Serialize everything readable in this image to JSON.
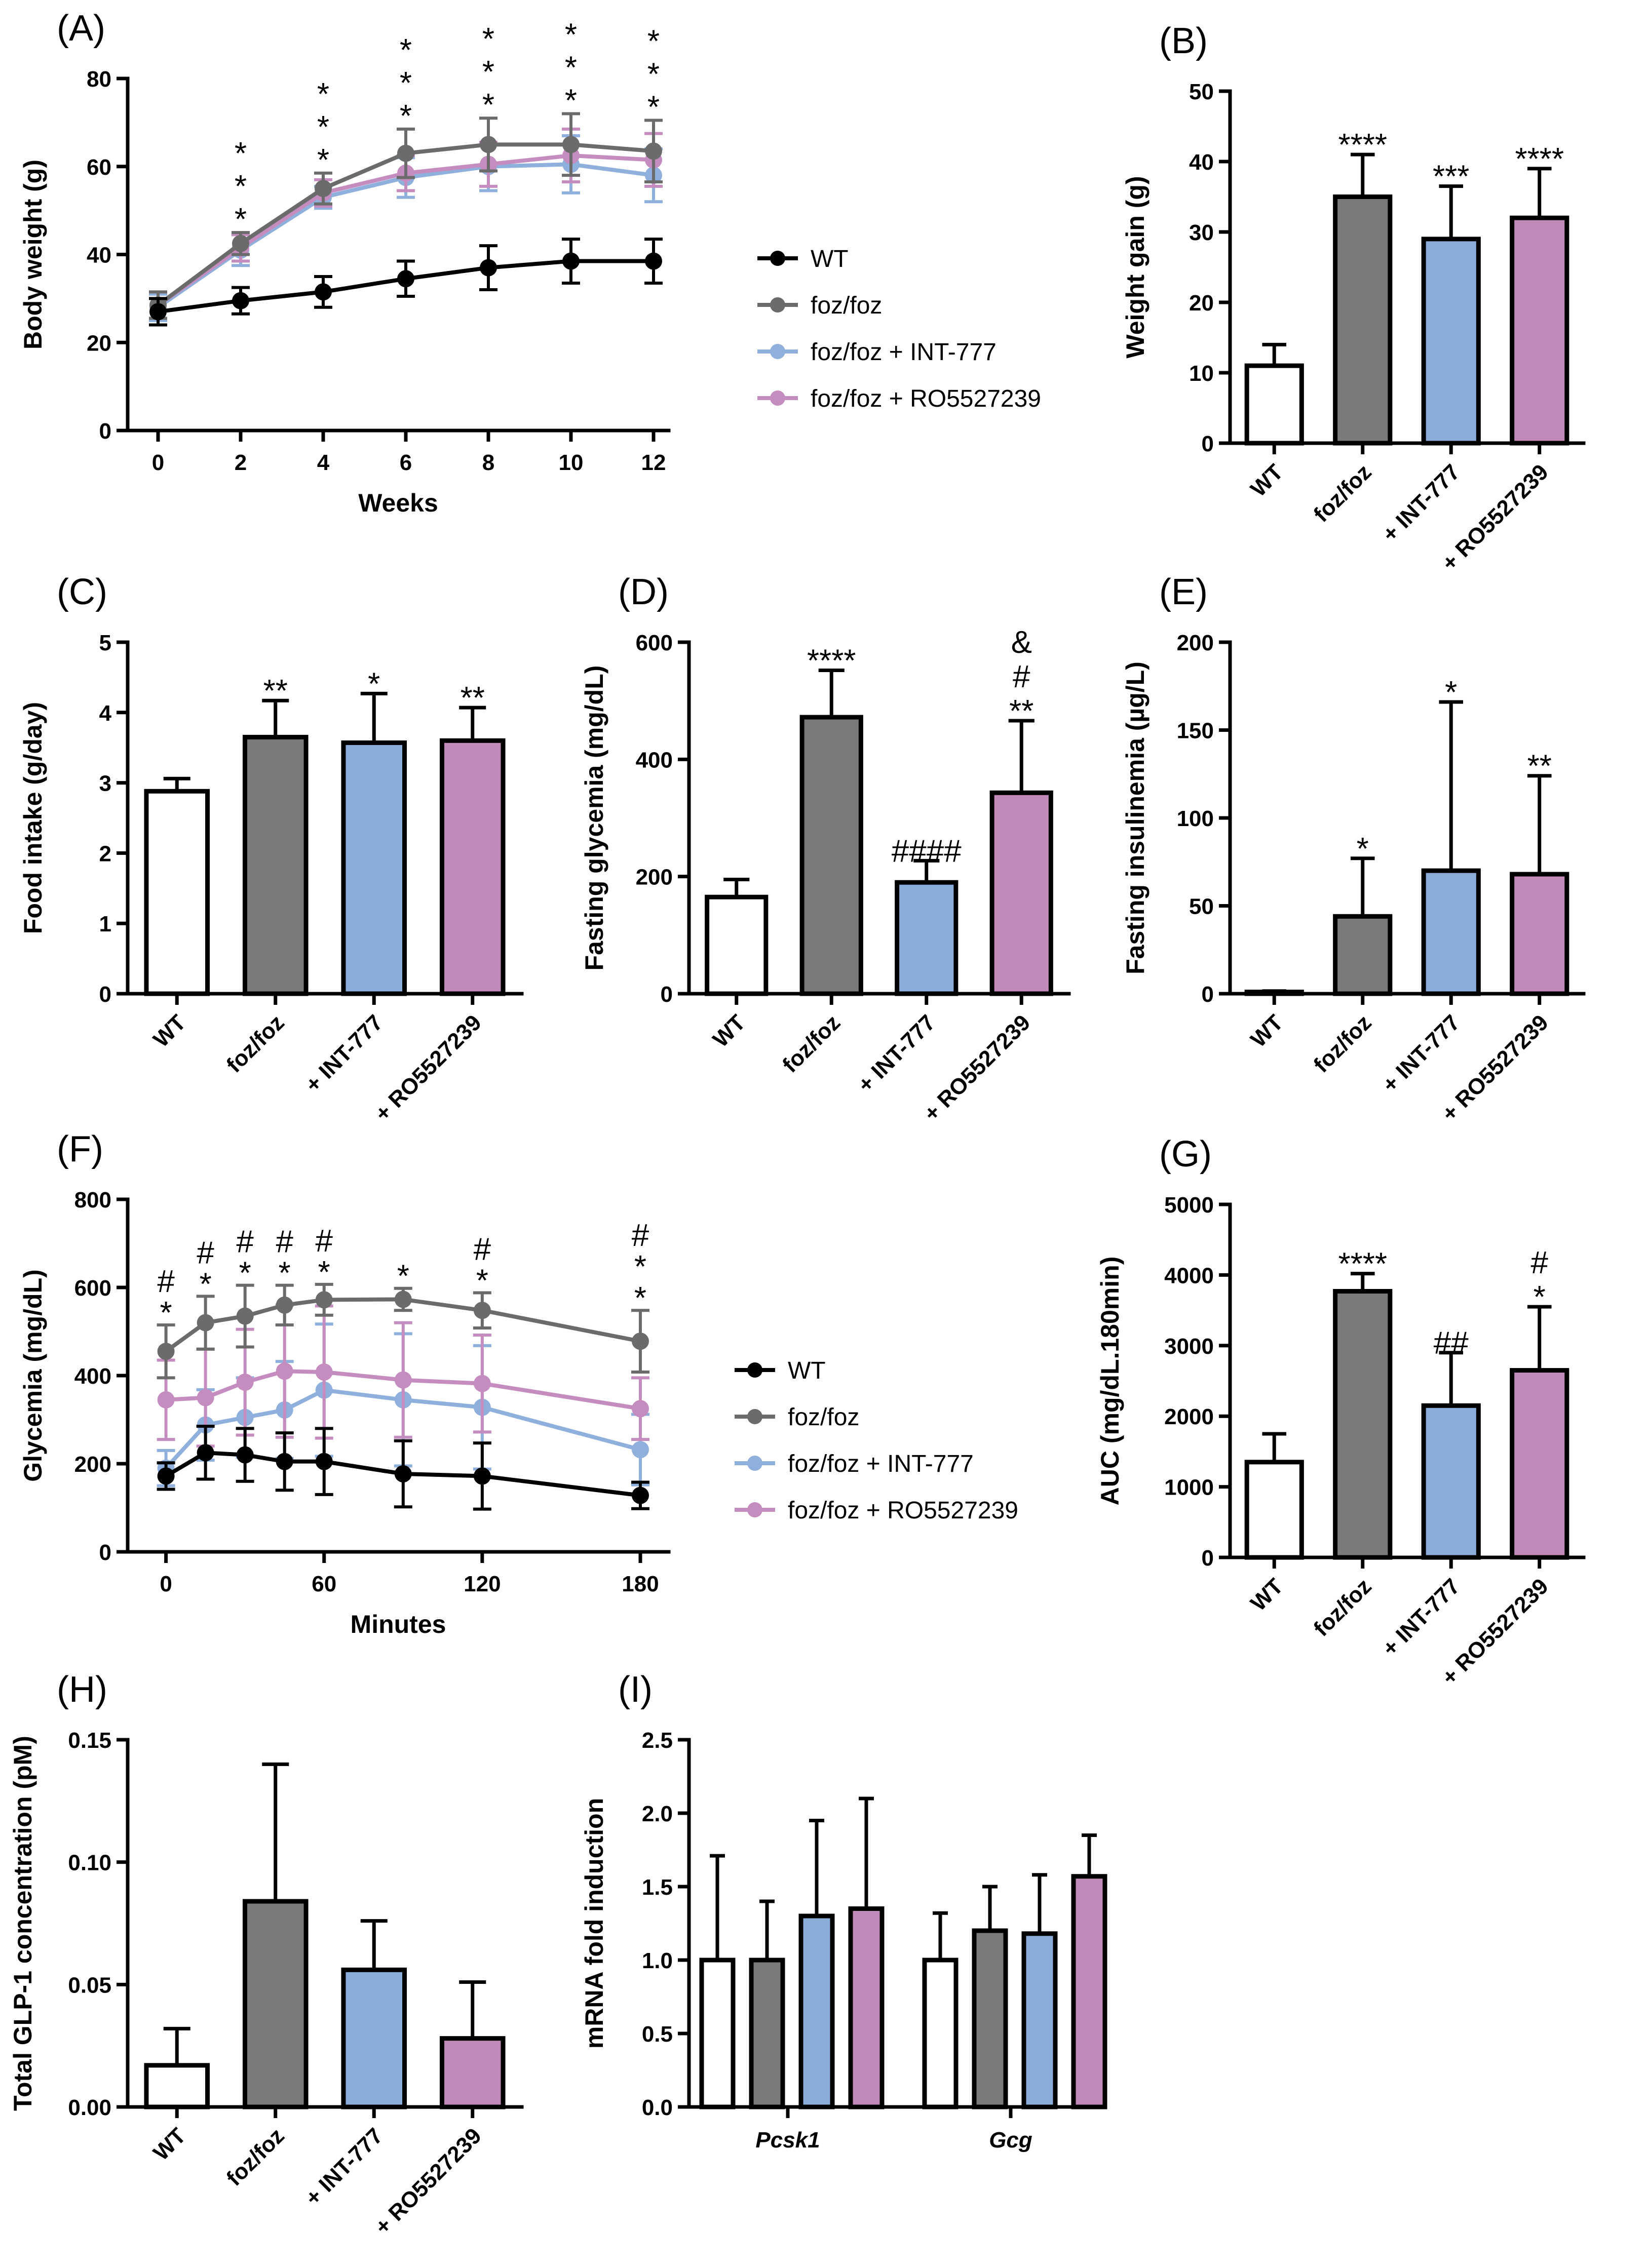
{
  "colors": {
    "wt": "#ffffff",
    "foz": "#7a7a7a",
    "foz_light": "#a2a2a6",
    "int": "#8aaed9",
    "ro": "#c18ab8",
    "line_wt": "#000000",
    "line_foz": "#6b6b6b",
    "line_int": "#8fb0dc",
    "line_ro": "#c58cc0"
  },
  "legend": [
    "WT",
    "foz/foz",
    "foz/foz + INT-777",
    "foz/foz + RO5527239"
  ],
  "chart_data": [
    {
      "id": "A",
      "type": "line",
      "panel_label": "(A)",
      "xlabel": "Weeks",
      "ylabel": "Body weight (g)",
      "ylim": [
        0,
        80
      ],
      "yticks": [
        "0",
        "20",
        "40",
        "60",
        "80"
      ],
      "x": [
        0,
        2,
        4,
        6,
        8,
        10,
        12
      ],
      "xticks": [
        "0",
        "2",
        "4",
        "6",
        "8",
        "10",
        "12"
      ],
      "series": [
        {
          "name": "WT",
          "values": [
            27,
            29.5,
            31.5,
            34.5,
            37,
            38.5,
            38.5
          ],
          "err": [
            3,
            3,
            3.5,
            4,
            5,
            5,
            5
          ]
        },
        {
          "name": "foz/foz",
          "values": [
            28.5,
            42.5,
            55,
            63,
            65,
            65,
            63.5
          ],
          "err": [
            3,
            2.5,
            3.5,
            5.5,
            6,
            7,
            7
          ]
        },
        {
          "name": "foz/foz + INT-777",
          "values": [
            28,
            41,
            53,
            57.5,
            60,
            60.5,
            58
          ],
          "err": [
            3,
            3.5,
            2.5,
            4.5,
            5.5,
            6.5,
            6
          ]
        },
        {
          "name": "foz/foz + RO5527239",
          "values": [
            28.5,
            41.5,
            54,
            58.5,
            60.5,
            62.5,
            61.5
          ],
          "err": [
            3,
            3,
            3,
            4,
            5,
            6,
            6
          ]
        }
      ],
      "annotations": [
        {
          "x": 2,
          "marks": [
            "*",
            "*",
            "*"
          ]
        },
        {
          "x": 4,
          "marks": [
            "*",
            "*",
            "*"
          ]
        },
        {
          "x": 6,
          "marks": [
            "*",
            "*",
            "*"
          ]
        },
        {
          "x": 8,
          "marks": [
            "*",
            "*",
            "*"
          ]
        },
        {
          "x": 10,
          "marks": [
            "*",
            "*",
            "*"
          ]
        },
        {
          "x": 12,
          "marks": [
            "*",
            "*",
            "*"
          ]
        }
      ]
    },
    {
      "id": "B",
      "type": "bar",
      "panel_label": "(B)",
      "ylabel": "Weight gain (g)",
      "ylim": [
        0,
        50
      ],
      "yticks": [
        "0",
        "10",
        "20",
        "30",
        "40",
        "50"
      ],
      "categories": [
        "WT",
        "foz/foz",
        "+ INT-777",
        "+ RO5527239"
      ],
      "values": [
        11,
        35,
        29,
        32
      ],
      "err": [
        3,
        6,
        7.5,
        7
      ],
      "annotations": [
        [],
        [
          "****"
        ],
        [
          "***"
        ],
        [
          "****"
        ]
      ]
    },
    {
      "id": "C",
      "type": "bar",
      "panel_label": "(C)",
      "ylabel": "Food intake (g/day)",
      "ylim": [
        0,
        5
      ],
      "yticks": [
        "0",
        "1",
        "2",
        "3",
        "4",
        "5"
      ],
      "categories": [
        "WT",
        "foz/foz",
        "+ INT-777",
        "+ RO5527239"
      ],
      "values": [
        2.88,
        3.65,
        3.57,
        3.6
      ],
      "err": [
        0.18,
        0.52,
        0.7,
        0.47
      ],
      "annotations": [
        [],
        [
          "**"
        ],
        [
          "*"
        ],
        [
          "**"
        ]
      ]
    },
    {
      "id": "D",
      "type": "bar",
      "panel_label": "(D)",
      "ylabel": "Fasting glycemia (mg/dL)",
      "ylim": [
        0,
        600
      ],
      "yticks": [
        "0",
        "200",
        "400",
        "600"
      ],
      "categories": [
        "WT",
        "foz/foz",
        "+ INT-777",
        "+ RO5527239"
      ],
      "values": [
        165,
        472,
        190,
        343
      ],
      "err": [
        30,
        80,
        37,
        123
      ],
      "annotations": [
        [],
        [
          "****"
        ],
        [
          "####"
        ],
        [
          "&",
          "#",
          "**"
        ]
      ]
    },
    {
      "id": "E",
      "type": "bar",
      "panel_label": "(E)",
      "ylabel": "Fasting insulinemia (µg/L)",
      "ylim": [
        0,
        200
      ],
      "yticks": [
        "0",
        "50",
        "100",
        "150",
        "200"
      ],
      "categories": [
        "WT",
        "foz/foz",
        "+ INT-777",
        "+ RO5527239"
      ],
      "values": [
        1,
        44,
        70,
        68
      ],
      "err": [
        0.5,
        33,
        96,
        56
      ],
      "annotations": [
        [],
        [
          "*"
        ],
        [
          "*"
        ],
        [
          "**"
        ]
      ]
    },
    {
      "id": "F",
      "type": "line",
      "panel_label": "(F)",
      "xlabel": "Minutes",
      "ylabel": "Glycemia (mg/dL)",
      "ylim": [
        0,
        800
      ],
      "yticks": [
        "0",
        "200",
        "400",
        "600",
        "800"
      ],
      "x": [
        0,
        15,
        30,
        45,
        60,
        90,
        120,
        180
      ],
      "xticks": [
        "0",
        "60",
        "120",
        "180"
      ],
      "series": [
        {
          "name": "WT",
          "values": [
            172,
            225,
            220,
            205,
            205,
            177,
            172,
            128
          ],
          "err": [
            30,
            60,
            60,
            65,
            75,
            75,
            75,
            30
          ]
        },
        {
          "name": "foz/foz",
          "values": [
            455,
            520,
            535,
            560,
            572,
            573,
            548,
            478
          ],
          "err": [
            60,
            60,
            70,
            45,
            35,
            25,
            40,
            70
          ]
        },
        {
          "name": "foz/foz + INT-777",
          "values": [
            190,
            288,
            305,
            322,
            367,
            345,
            328,
            232
          ],
          "err": [
            40,
            80,
            90,
            110,
            150,
            150,
            140,
            80
          ]
        },
        {
          "name": "foz/foz + RO5527239",
          "values": [
            345,
            350,
            385,
            410,
            408,
            390,
            382,
            325
          ],
          "err": [
            90,
            110,
            120,
            150,
            150,
            130,
            110,
            70
          ]
        }
      ],
      "annotations": [
        {
          "x": 0,
          "marks": [
            "#",
            "*"
          ]
        },
        {
          "x": 15,
          "marks": [
            "#",
            "*"
          ]
        },
        {
          "x": 30,
          "marks": [
            "#",
            "*"
          ]
        },
        {
          "x": 45,
          "marks": [
            "#",
            "*"
          ]
        },
        {
          "x": 60,
          "marks": [
            "#",
            "*"
          ]
        },
        {
          "x": 90,
          "marks": [
            "*"
          ]
        },
        {
          "x": 120,
          "marks": [
            "#",
            "*"
          ]
        },
        {
          "x": 180,
          "marks": [
            "#",
            "*",
            "*"
          ]
        }
      ]
    },
    {
      "id": "G",
      "type": "bar",
      "panel_label": "(G)",
      "ylabel": "AUC (mg/dL.180min)",
      "ylim": [
        0,
        5000
      ],
      "yticks": [
        "0",
        "1000",
        "2000",
        "3000",
        "4000",
        "5000"
      ],
      "categories": [
        "WT",
        "foz/foz",
        "+ INT-777",
        "+ RO5527239"
      ],
      "values": [
        1350,
        3770,
        2150,
        2650
      ],
      "err": [
        400,
        250,
        750,
        900
      ],
      "annotations": [
        [],
        [
          "****"
        ],
        [
          "##"
        ],
        [
          "#",
          "*"
        ]
      ]
    },
    {
      "id": "H",
      "type": "bar",
      "panel_label": "(H)",
      "ylabel": "Total GLP-1 concentration (pM)",
      "ylim": [
        0,
        0.15
      ],
      "yticks": [
        "0.00",
        "0.05",
        "0.10",
        "0.15"
      ],
      "categories": [
        "WT",
        "foz/foz",
        "+ INT-777",
        "+ RO5527239"
      ],
      "values": [
        0.017,
        0.084,
        0.056,
        0.028
      ],
      "err": [
        0.015,
        0.056,
        0.02,
        0.023
      ],
      "annotations": [
        [],
        [],
        [],
        []
      ]
    },
    {
      "id": "I",
      "type": "bar",
      "panel_label": "(I)",
      "ylabel": "mRNA fold induction",
      "ylim": [
        0,
        2.5
      ],
      "yticks": [
        "0.0",
        "0.5",
        "1.0",
        "1.5",
        "2.0",
        "2.5"
      ],
      "categories": [
        "Pcsk1",
        "Gcg"
      ],
      "series": [
        {
          "name": "WT",
          "values": [
            1.0,
            1.0
          ],
          "err": [
            0.71,
            0.32
          ]
        },
        {
          "name": "foz/foz",
          "values": [
            1.0,
            1.2
          ],
          "err": [
            0.4,
            0.3
          ]
        },
        {
          "name": "foz/foz + INT-777",
          "values": [
            1.3,
            1.18
          ],
          "err": [
            0.65,
            0.4
          ]
        },
        {
          "name": "foz/foz + RO5527239",
          "values": [
            1.35,
            1.57
          ],
          "err": [
            0.75,
            0.28
          ]
        }
      ]
    }
  ]
}
